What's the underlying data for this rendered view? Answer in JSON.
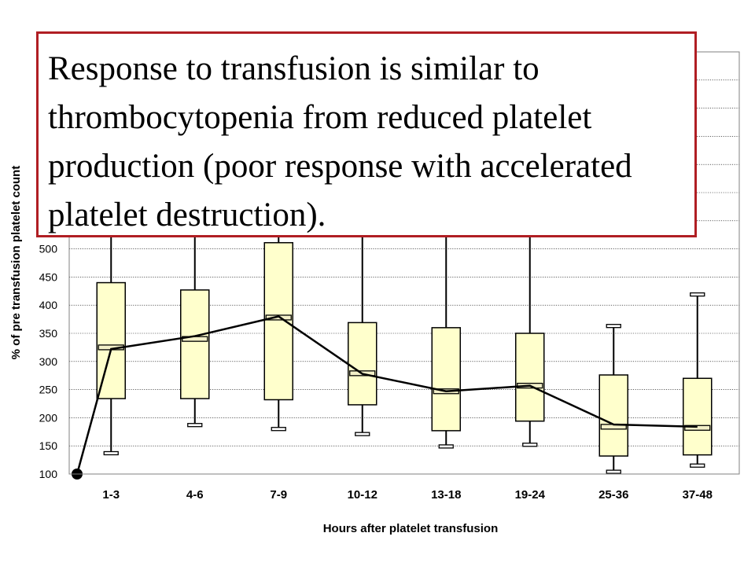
{
  "callout": {
    "text": "Response to transfusion is similar to thrombocytopenia from reduced platelet production (poor response with accelerated platelet destruction)."
  },
  "colors": {
    "box_fill": "#ffffcc",
    "callout_border": "#b01e23",
    "line": "#000000"
  },
  "chart_data": {
    "type": "box",
    "xlabel": "Hours after platelet transfusion",
    "ylabel": "% of pre transfusion platelet count",
    "ylim": [
      100,
      850
    ],
    "yticks": [
      100,
      150,
      200,
      250,
      300,
      350,
      400,
      450,
      500
    ],
    "grid": true,
    "categories": [
      "1-3",
      "4-6",
      "7-9",
      "10-12",
      "13-18",
      "19-24",
      "25-36",
      "37-48"
    ],
    "boxes": [
      {
        "min": 137,
        "q1": 234,
        "median": 325,
        "q3": 440
      },
      {
        "min": 187,
        "q1": 234,
        "median": 340,
        "q3": 427
      },
      {
        "min": 180,
        "q1": 232,
        "median": 378,
        "q3": 511
      },
      {
        "min": 171,
        "q1": 223,
        "median": 279,
        "q3": 369
      },
      {
        "min": 149,
        "q1": 177,
        "median": 247,
        "q3": 360
      },
      {
        "min": 152,
        "q1": 194,
        "median": 257,
        "q3": 350
      },
      {
        "min": 104,
        "q1": 132,
        "median": 184,
        "q3": 276,
        "max": 363
      },
      {
        "min": 115,
        "q1": 134,
        "median": 182,
        "q3": 270,
        "max": 419
      }
    ],
    "line": {
      "x": [
        "0",
        "1-3",
        "4-6",
        "7-9",
        "10-12",
        "13-18",
        "19-24",
        "25-36",
        "37-48"
      ],
      "y": [
        100,
        322,
        345,
        380,
        278,
        247,
        257,
        188,
        184
      ]
    }
  }
}
